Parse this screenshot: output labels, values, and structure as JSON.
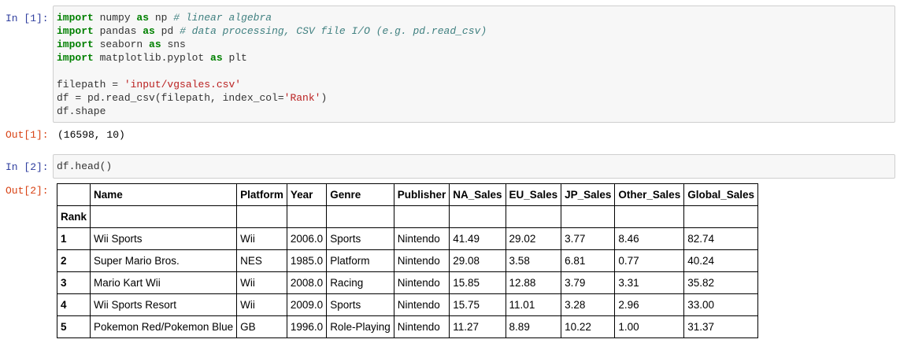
{
  "cells": {
    "in1": {
      "prompt": "In [1]:",
      "lines": [
        [
          {
            "t": "import",
            "c": "kw"
          },
          {
            "t": " numpy ",
            "c": "plain"
          },
          {
            "t": "as",
            "c": "kw"
          },
          {
            "t": " np ",
            "c": "plain"
          },
          {
            "t": "# linear algebra",
            "c": "cm"
          }
        ],
        [
          {
            "t": "import",
            "c": "kw"
          },
          {
            "t": " pandas ",
            "c": "plain"
          },
          {
            "t": "as",
            "c": "kw"
          },
          {
            "t": " pd ",
            "c": "plain"
          },
          {
            "t": "# data processing, CSV file I/O (e.g. pd.read_csv)",
            "c": "cm"
          }
        ],
        [
          {
            "t": "import",
            "c": "kw"
          },
          {
            "t": " seaborn ",
            "c": "plain"
          },
          {
            "t": "as",
            "c": "kw"
          },
          {
            "t": " sns",
            "c": "plain"
          }
        ],
        [
          {
            "t": "import",
            "c": "kw"
          },
          {
            "t": " matplotlib.pyplot ",
            "c": "plain"
          },
          {
            "t": "as",
            "c": "kw"
          },
          {
            "t": " plt",
            "c": "plain"
          }
        ],
        [],
        [
          {
            "t": "filepath = ",
            "c": "plain"
          },
          {
            "t": "'input/vgsales.csv'",
            "c": "st"
          }
        ],
        [
          {
            "t": "df = pd.read_csv(filepath, index_col=",
            "c": "plain"
          },
          {
            "t": "'Rank'",
            "c": "st"
          },
          {
            "t": ")",
            "c": "plain"
          }
        ],
        [
          {
            "t": "df.shape",
            "c": "plain"
          }
        ]
      ]
    },
    "out1": {
      "prompt": "Out[1]:",
      "text": "(16598, 10)"
    },
    "in2": {
      "prompt": "In [2]:",
      "lines": [
        [
          {
            "t": "df.head()",
            "c": "plain"
          }
        ]
      ]
    },
    "out2": {
      "prompt": "Out[2]:",
      "table": {
        "index_name": "Rank",
        "columns": [
          "Name",
          "Platform",
          "Year",
          "Genre",
          "Publisher",
          "NA_Sales",
          "EU_Sales",
          "JP_Sales",
          "Other_Sales",
          "Global_Sales"
        ],
        "rows": [
          {
            "index": "1",
            "values": [
              "Wii Sports",
              "Wii",
              "2006.0",
              "Sports",
              "Nintendo",
              "41.49",
              "29.02",
              "3.77",
              "8.46",
              "82.74"
            ]
          },
          {
            "index": "2",
            "values": [
              "Super Mario Bros.",
              "NES",
              "1985.0",
              "Platform",
              "Nintendo",
              "29.08",
              "3.58",
              "6.81",
              "0.77",
              "40.24"
            ]
          },
          {
            "index": "3",
            "values": [
              "Mario Kart Wii",
              "Wii",
              "2008.0",
              "Racing",
              "Nintendo",
              "15.85",
              "12.88",
              "3.79",
              "3.31",
              "35.82"
            ]
          },
          {
            "index": "4",
            "values": [
              "Wii Sports Resort",
              "Wii",
              "2009.0",
              "Sports",
              "Nintendo",
              "15.75",
              "11.01",
              "3.28",
              "2.96",
              "33.00"
            ]
          },
          {
            "index": "5",
            "values": [
              "Pokemon Red/Pokemon Blue",
              "GB",
              "1996.0",
              "Role-Playing",
              "Nintendo",
              "11.27",
              "8.89",
              "10.22",
              "1.00",
              "31.37"
            ]
          }
        ]
      }
    }
  }
}
